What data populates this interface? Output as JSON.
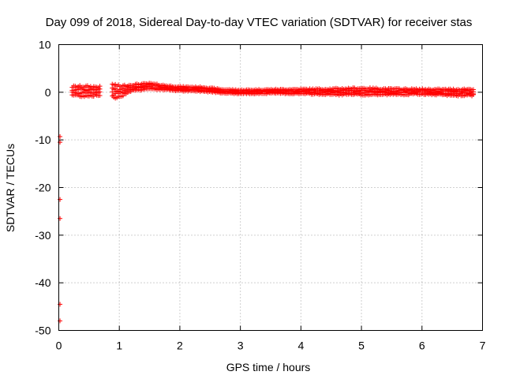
{
  "chart_data": {
    "type": "scatter",
    "title": "Day 099 of 2018, Sidereal Day-to-day VTEC variation (SDTVAR) for receiver stas",
    "xlabel": "GPS time / hours",
    "ylabel": "SDTVAR / TECUs",
    "xlim": [
      0,
      7
    ],
    "ylim": [
      -50,
      10
    ],
    "xticks": [
      "0",
      "1",
      "2",
      "3",
      "4",
      "5",
      "6",
      "7"
    ],
    "yticks": [
      "10",
      "0",
      "-10",
      "-20",
      "-30",
      "-40",
      "-50"
    ],
    "grid": true,
    "series": [
      {
        "color": "#ff0000",
        "marker": "plus",
        "band": [
          {
            "x": 0.22,
            "lo": -0.8,
            "hi": 1.5
          },
          {
            "x": 0.4,
            "lo": -1.0,
            "hi": 1.6
          },
          {
            "x": 0.55,
            "lo": -0.9,
            "hi": 1.5
          },
          {
            "x": 0.69,
            "lo": -0.8,
            "hi": 1.4
          },
          {
            "x": 0.9,
            "lo": -1.5,
            "hi": 2.2
          },
          {
            "x": 1.0,
            "lo": -1.2,
            "hi": 1.6
          },
          {
            "x": 1.2,
            "lo": 0.2,
            "hi": 1.8
          },
          {
            "x": 1.5,
            "lo": 0.6,
            "hi": 2.0
          },
          {
            "x": 1.8,
            "lo": 0.4,
            "hi": 1.5
          },
          {
            "x": 2.0,
            "lo": 0.2,
            "hi": 1.3
          },
          {
            "x": 2.4,
            "lo": 0.1,
            "hi": 1.2
          },
          {
            "x": 2.7,
            "lo": -0.2,
            "hi": 0.7
          },
          {
            "x": 3.0,
            "lo": -0.4,
            "hi": 0.6
          },
          {
            "x": 3.5,
            "lo": -0.3,
            "hi": 0.7
          },
          {
            "x": 4.0,
            "lo": -0.4,
            "hi": 0.8
          },
          {
            "x": 4.5,
            "lo": -0.6,
            "hi": 0.9
          },
          {
            "x": 5.0,
            "lo": -0.7,
            "hi": 1.1
          },
          {
            "x": 5.5,
            "lo": -0.6,
            "hi": 0.9
          },
          {
            "x": 6.0,
            "lo": -0.5,
            "hi": 0.8
          },
          {
            "x": 6.5,
            "lo": -0.8,
            "hi": 0.8
          },
          {
            "x": 6.85,
            "lo": -0.8,
            "hi": 0.9
          }
        ],
        "gaps": [
          [
            0.7,
            0.88
          ]
        ],
        "outliers": [
          {
            "x": 0.02,
            "y": -9.3
          },
          {
            "x": 0.02,
            "y": -10.5
          },
          {
            "x": 0.02,
            "y": -22.5
          },
          {
            "x": 0.02,
            "y": -26.5
          },
          {
            "x": 0.02,
            "y": -44.5
          },
          {
            "x": 0.02,
            "y": -48.0
          }
        ]
      }
    ]
  }
}
